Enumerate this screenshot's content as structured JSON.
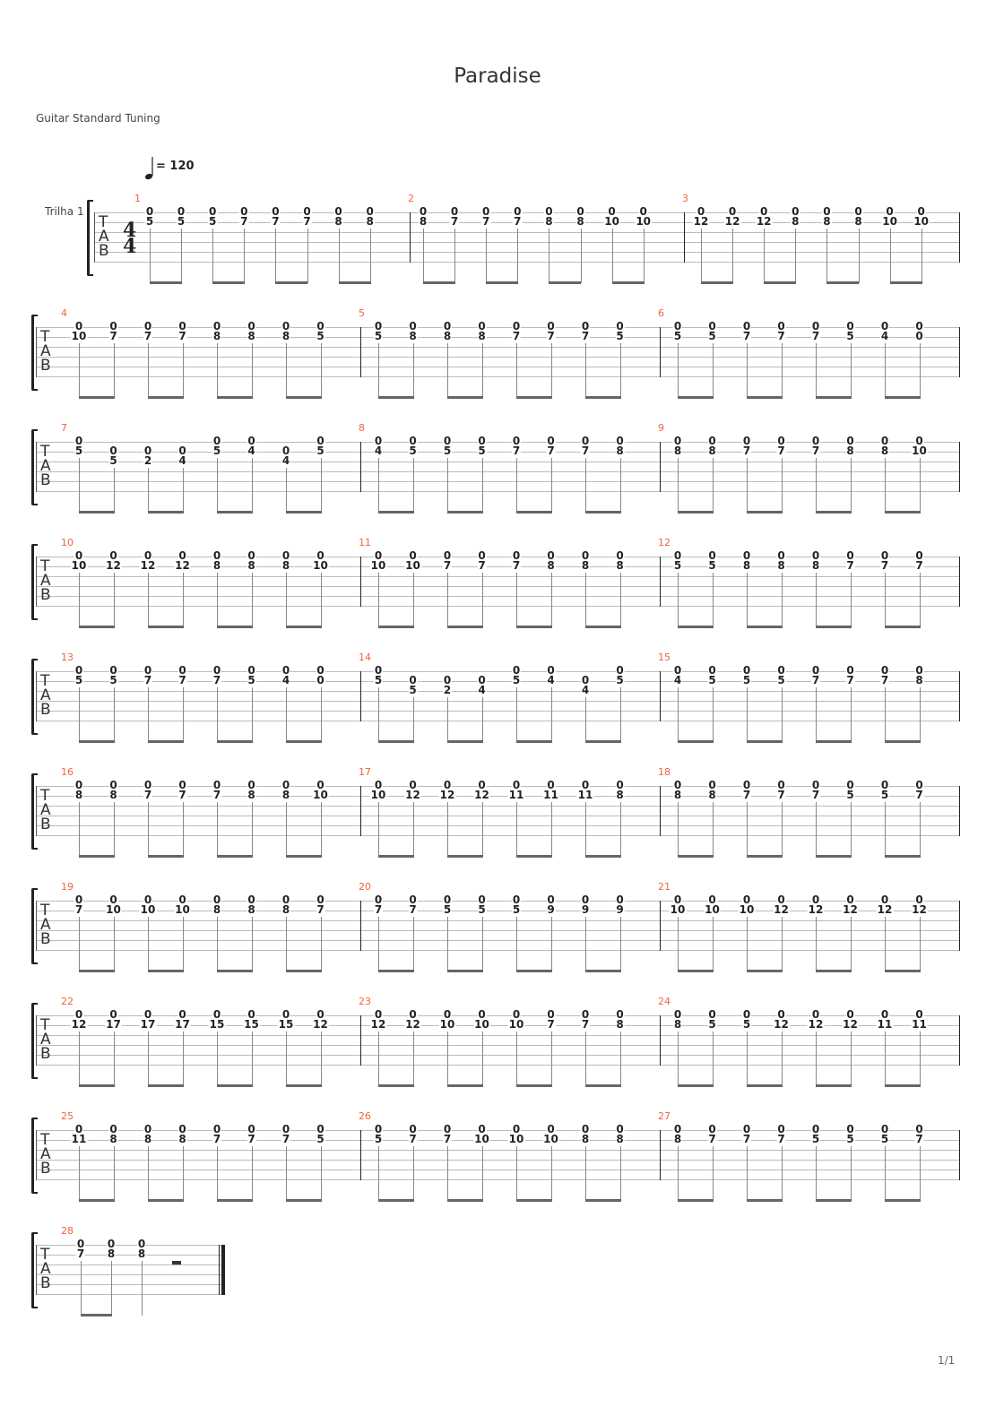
{
  "title": "Paradise",
  "tuning": "Guitar Standard Tuning",
  "tempo": {
    "icon": "quarter-note-icon",
    "label": "= 120"
  },
  "track_name": "Trilha 1",
  "time_signature": {
    "top": "4",
    "bottom": "4"
  },
  "tab_clef": [
    "T",
    "A",
    "B"
  ],
  "page_number": "1/1",
  "accent_color": "#f0643c",
  "measures": [
    {
      "number": "1",
      "notes": [
        [
          "0",
          "5"
        ],
        [
          "0",
          "5"
        ],
        [
          "0",
          "5"
        ],
        [
          "0",
          "7"
        ],
        [
          "0",
          "7"
        ],
        [
          "0",
          "7"
        ],
        [
          "0",
          "8"
        ],
        [
          "0",
          "8"
        ]
      ]
    },
    {
      "number": "2",
      "notes": [
        [
          "0",
          "8"
        ],
        [
          "0",
          "7"
        ],
        [
          "0",
          "7"
        ],
        [
          "0",
          "7"
        ],
        [
          "0",
          "8"
        ],
        [
          "0",
          "8"
        ],
        [
          "0",
          "10"
        ],
        [
          "0",
          "10"
        ]
      ]
    },
    {
      "number": "3",
      "notes": [
        [
          "0",
          "12"
        ],
        [
          "0",
          "12"
        ],
        [
          "0",
          "12"
        ],
        [
          "0",
          "8"
        ],
        [
          "0",
          "8"
        ],
        [
          "0",
          "8"
        ],
        [
          "0",
          "10"
        ],
        [
          "0",
          "10"
        ]
      ]
    },
    {
      "number": "4",
      "notes": [
        [
          "0",
          "10"
        ],
        [
          "0",
          "7"
        ],
        [
          "0",
          "7"
        ],
        [
          "0",
          "7"
        ],
        [
          "0",
          "8"
        ],
        [
          "0",
          "8"
        ],
        [
          "0",
          "8"
        ],
        [
          "0",
          "5"
        ]
      ]
    },
    {
      "number": "5",
      "notes": [
        [
          "0",
          "5"
        ],
        [
          "0",
          "8"
        ],
        [
          "0",
          "8"
        ],
        [
          "0",
          "8"
        ],
        [
          "0",
          "7"
        ],
        [
          "0",
          "7"
        ],
        [
          "0",
          "7"
        ],
        [
          "0",
          "5"
        ]
      ]
    },
    {
      "number": "6",
      "notes": [
        [
          "0",
          "5"
        ],
        [
          "0",
          "5"
        ],
        [
          "0",
          "7"
        ],
        [
          "0",
          "7"
        ],
        [
          "0",
          "7"
        ],
        [
          "0",
          "5"
        ],
        [
          "0",
          "4"
        ],
        [
          "0",
          "0"
        ]
      ]
    },
    {
      "number": "7",
      "notes": [
        [
          "0",
          "5"
        ],
        [
          null,
          "0",
          "5"
        ],
        [
          null,
          "0",
          "2"
        ],
        [
          null,
          "0",
          "4"
        ],
        [
          "0",
          "5"
        ],
        [
          "0",
          "4"
        ],
        [
          null,
          "0",
          "4"
        ],
        [
          "0",
          "5"
        ]
      ]
    },
    {
      "number": "8",
      "notes": [
        [
          "0",
          "4"
        ],
        [
          "0",
          "5"
        ],
        [
          "0",
          "5"
        ],
        [
          "0",
          "5"
        ],
        [
          "0",
          "7"
        ],
        [
          "0",
          "7"
        ],
        [
          "0",
          "7"
        ],
        [
          "0",
          "8"
        ]
      ]
    },
    {
      "number": "9",
      "notes": [
        [
          "0",
          "8"
        ],
        [
          "0",
          "8"
        ],
        [
          "0",
          "7"
        ],
        [
          "0",
          "7"
        ],
        [
          "0",
          "7"
        ],
        [
          "0",
          "8"
        ],
        [
          "0",
          "8"
        ],
        [
          "0",
          "10"
        ]
      ]
    },
    {
      "number": "10",
      "notes": [
        [
          "0",
          "10"
        ],
        [
          "0",
          "12"
        ],
        [
          "0",
          "12"
        ],
        [
          "0",
          "12"
        ],
        [
          "0",
          "8"
        ],
        [
          "0",
          "8"
        ],
        [
          "0",
          "8"
        ],
        [
          "0",
          "10"
        ]
      ]
    },
    {
      "number": "11",
      "notes": [
        [
          "0",
          "10"
        ],
        [
          "0",
          "10"
        ],
        [
          "0",
          "7"
        ],
        [
          "0",
          "7"
        ],
        [
          "0",
          "7"
        ],
        [
          "0",
          "8"
        ],
        [
          "0",
          "8"
        ],
        [
          "0",
          "8"
        ]
      ]
    },
    {
      "number": "12",
      "notes": [
        [
          "0",
          "5"
        ],
        [
          "0",
          "5"
        ],
        [
          "0",
          "8"
        ],
        [
          "0",
          "8"
        ],
        [
          "0",
          "8"
        ],
        [
          "0",
          "7"
        ],
        [
          "0",
          "7"
        ],
        [
          "0",
          "7"
        ]
      ]
    },
    {
      "number": "13",
      "notes": [
        [
          "0",
          "5"
        ],
        [
          "0",
          "5"
        ],
        [
          "0",
          "7"
        ],
        [
          "0",
          "7"
        ],
        [
          "0",
          "7"
        ],
        [
          "0",
          "5"
        ],
        [
          "0",
          "4"
        ],
        [
          "0",
          "0"
        ]
      ]
    },
    {
      "number": "14",
      "notes": [
        [
          "0",
          "5"
        ],
        [
          null,
          "0",
          "5"
        ],
        [
          null,
          "0",
          "2"
        ],
        [
          null,
          "0",
          "4"
        ],
        [
          "0",
          "5"
        ],
        [
          "0",
          "4"
        ],
        [
          null,
          "0",
          "4"
        ],
        [
          "0",
          "5"
        ]
      ]
    },
    {
      "number": "15",
      "notes": [
        [
          "0",
          "4"
        ],
        [
          "0",
          "5"
        ],
        [
          "0",
          "5"
        ],
        [
          "0",
          "5"
        ],
        [
          "0",
          "7"
        ],
        [
          "0",
          "7"
        ],
        [
          "0",
          "7"
        ],
        [
          "0",
          "8"
        ]
      ]
    },
    {
      "number": "16",
      "notes": [
        [
          "0",
          "8"
        ],
        [
          "0",
          "8"
        ],
        [
          "0",
          "7"
        ],
        [
          "0",
          "7"
        ],
        [
          "0",
          "7"
        ],
        [
          "0",
          "8"
        ],
        [
          "0",
          "8"
        ],
        [
          "0",
          "10"
        ]
      ]
    },
    {
      "number": "17",
      "notes": [
        [
          "0",
          "10"
        ],
        [
          "0",
          "12"
        ],
        [
          "0",
          "12"
        ],
        [
          "0",
          "12"
        ],
        [
          "0",
          "11"
        ],
        [
          "0",
          "11"
        ],
        [
          "0",
          "11"
        ],
        [
          "0",
          "8"
        ]
      ]
    },
    {
      "number": "18",
      "notes": [
        [
          "0",
          "8"
        ],
        [
          "0",
          "8"
        ],
        [
          "0",
          "7"
        ],
        [
          "0",
          "7"
        ],
        [
          "0",
          "7"
        ],
        [
          "0",
          "5"
        ],
        [
          "0",
          "5"
        ],
        [
          "0",
          "7"
        ]
      ]
    },
    {
      "number": "19",
      "notes": [
        [
          "0",
          "7"
        ],
        [
          "0",
          "10"
        ],
        [
          "0",
          "10"
        ],
        [
          "0",
          "10"
        ],
        [
          "0",
          "8"
        ],
        [
          "0",
          "8"
        ],
        [
          "0",
          "8"
        ],
        [
          "0",
          "7"
        ]
      ]
    },
    {
      "number": "20",
      "notes": [
        [
          "0",
          "7"
        ],
        [
          "0",
          "7"
        ],
        [
          "0",
          "5"
        ],
        [
          "0",
          "5"
        ],
        [
          "0",
          "5"
        ],
        [
          "0",
          "9"
        ],
        [
          "0",
          "9"
        ],
        [
          "0",
          "9"
        ]
      ]
    },
    {
      "number": "21",
      "notes": [
        [
          "0",
          "10"
        ],
        [
          "0",
          "10"
        ],
        [
          "0",
          "10"
        ],
        [
          "0",
          "12"
        ],
        [
          "0",
          "12"
        ],
        [
          "0",
          "12"
        ],
        [
          "0",
          "12"
        ],
        [
          "0",
          "12"
        ]
      ]
    },
    {
      "number": "22",
      "notes": [
        [
          "0",
          "12"
        ],
        [
          "0",
          "17"
        ],
        [
          "0",
          "17"
        ],
        [
          "0",
          "17"
        ],
        [
          "0",
          "15"
        ],
        [
          "0",
          "15"
        ],
        [
          "0",
          "15"
        ],
        [
          "0",
          "12"
        ]
      ]
    },
    {
      "number": "23",
      "notes": [
        [
          "0",
          "12"
        ],
        [
          "0",
          "12"
        ],
        [
          "0",
          "10"
        ],
        [
          "0",
          "10"
        ],
        [
          "0",
          "10"
        ],
        [
          "0",
          "7"
        ],
        [
          "0",
          "7"
        ],
        [
          "0",
          "8"
        ]
      ]
    },
    {
      "number": "24",
      "notes": [
        [
          "0",
          "8"
        ],
        [
          "0",
          "5"
        ],
        [
          "0",
          "5"
        ],
        [
          "0",
          "12"
        ],
        [
          "0",
          "12"
        ],
        [
          "0",
          "12"
        ],
        [
          "0",
          "11"
        ],
        [
          "0",
          "11"
        ]
      ]
    },
    {
      "number": "25",
      "notes": [
        [
          "0",
          "11"
        ],
        [
          "0",
          "8"
        ],
        [
          "0",
          "8"
        ],
        [
          "0",
          "8"
        ],
        [
          "0",
          "7"
        ],
        [
          "0",
          "7"
        ],
        [
          "0",
          "7"
        ],
        [
          "0",
          "5"
        ]
      ]
    },
    {
      "number": "26",
      "notes": [
        [
          "0",
          "5"
        ],
        [
          "0",
          "7"
        ],
        [
          "0",
          "7"
        ],
        [
          "0",
          "10"
        ],
        [
          "0",
          "10"
        ],
        [
          "0",
          "10"
        ],
        [
          "0",
          "8"
        ],
        [
          "0",
          "8"
        ]
      ]
    },
    {
      "number": "27",
      "notes": [
        [
          "0",
          "8"
        ],
        [
          "0",
          "7"
        ],
        [
          "0",
          "7"
        ],
        [
          "0",
          "7"
        ],
        [
          "0",
          "5"
        ],
        [
          "0",
          "5"
        ],
        [
          "0",
          "5"
        ],
        [
          "0",
          "7"
        ]
      ]
    },
    {
      "number": "28",
      "notes": [
        [
          "0",
          "7"
        ],
        [
          "0",
          "8"
        ],
        [
          "0",
          "8"
        ]
      ],
      "ending_rest": "half-rest",
      "final_barline": true
    }
  ]
}
